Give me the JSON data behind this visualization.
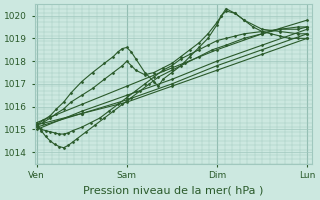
{
  "bg_color": "#cce8e0",
  "grid_color": "#a0c8be",
  "line_color": "#2a5a2a",
  "marker_color": "#2a5a2a",
  "ylim": [
    1013.7,
    1020.5
  ],
  "yticks": [
    1014,
    1015,
    1016,
    1017,
    1018,
    1019,
    1020
  ],
  "xlabel": "Pression niveau de la mer( hPa )",
  "xlabel_fontsize": 8,
  "tick_fontsize": 6.5,
  "xtick_labels": [
    "Ven",
    "Sam",
    "Dim",
    "Lun"
  ],
  "xtick_positions": [
    0,
    1,
    2,
    3
  ],
  "lines": [
    {
      "x": [
        0.0,
        0.5,
        1.0,
        1.5,
        2.0,
        2.5,
        3.0
      ],
      "y": [
        1015.2,
        1015.7,
        1016.2,
        1016.9,
        1017.6,
        1018.3,
        1019.0
      ],
      "marker": "D",
      "ms": 1.5,
      "lw": 0.8
    },
    {
      "x": [
        0.0,
        0.5,
        1.0,
        1.5,
        2.0,
        2.5,
        3.0
      ],
      "y": [
        1015.1,
        1015.7,
        1016.3,
        1017.0,
        1017.8,
        1018.5,
        1019.2
      ],
      "marker": "D",
      "ms": 1.5,
      "lw": 0.8
    },
    {
      "x": [
        0.0,
        0.5,
        1.0,
        1.5,
        2.0,
        2.5,
        3.0
      ],
      "y": [
        1015.0,
        1015.8,
        1016.5,
        1017.2,
        1018.0,
        1018.7,
        1019.4
      ],
      "marker": "D",
      "ms": 1.5,
      "lw": 0.8
    },
    {
      "x": [
        0.0,
        0.5,
        1.0,
        1.5,
        2.0,
        2.5,
        3.0
      ],
      "y": [
        1015.3,
        1016.1,
        1016.9,
        1017.7,
        1018.5,
        1019.2,
        1019.8
      ],
      "marker": "D",
      "ms": 1.5,
      "lw": 0.8
    },
    {
      "x": [
        0.0,
        0.07,
        0.15,
        0.22,
        0.3,
        0.38,
        0.5,
        0.62,
        0.75,
        0.85,
        0.95,
        1.0,
        1.05,
        1.1,
        1.2,
        1.3,
        1.4,
        1.5,
        1.6,
        1.7,
        1.8,
        1.9,
        2.0,
        2.05,
        2.1,
        2.2,
        2.3,
        2.4,
        2.5,
        2.6,
        2.7,
        2.8,
        2.9,
        3.0
      ],
      "y": [
        1015.2,
        1015.3,
        1015.5,
        1015.7,
        1015.9,
        1016.2,
        1016.5,
        1016.8,
        1017.2,
        1017.5,
        1017.8,
        1018.0,
        1017.8,
        1017.6,
        1017.4,
        1017.5,
        1017.7,
        1017.9,
        1018.2,
        1018.5,
        1018.8,
        1019.2,
        1019.7,
        1020.0,
        1020.2,
        1020.1,
        1019.8,
        1019.5,
        1019.3,
        1019.2,
        1019.1,
        1019.0,
        1019.0,
        1019.0
      ],
      "marker": "D",
      "ms": 1.5,
      "lw": 0.8
    },
    {
      "x": [
        0.0,
        0.07,
        0.15,
        0.22,
        0.3,
        0.38,
        0.5,
        0.62,
        0.75,
        0.85,
        0.9,
        0.95,
        1.0,
        1.05,
        1.1,
        1.2,
        1.3,
        1.35,
        1.4,
        1.5,
        1.6,
        1.7,
        1.8,
        1.9,
        2.0,
        2.05,
        2.1,
        2.2,
        2.3,
        2.5,
        2.7,
        2.9,
        3.0
      ],
      "y": [
        1015.2,
        1015.4,
        1015.6,
        1015.9,
        1016.2,
        1016.6,
        1017.1,
        1017.5,
        1017.9,
        1018.2,
        1018.4,
        1018.55,
        1018.6,
        1018.4,
        1018.1,
        1017.5,
        1017.1,
        1016.9,
        1017.2,
        1017.5,
        1017.8,
        1018.2,
        1018.6,
        1019.0,
        1019.6,
        1020.0,
        1020.3,
        1020.1,
        1019.8,
        1019.4,
        1019.3,
        1019.2,
        1019.2
      ],
      "marker": "D",
      "ms": 1.5,
      "lw": 0.8
    },
    {
      "x": [
        0.0,
        0.05,
        0.1,
        0.15,
        0.2,
        0.25,
        0.3,
        0.35,
        0.4,
        0.5,
        0.6,
        0.7,
        0.8,
        0.9,
        1.0,
        1.1,
        1.2,
        1.3,
        1.4,
        1.5,
        1.6,
        1.7,
        1.8,
        1.9,
        2.0,
        2.1,
        2.2,
        2.3,
        2.5,
        2.7,
        2.9,
        3.0
      ],
      "y": [
        1015.2,
        1015.0,
        1014.95,
        1014.9,
        1014.85,
        1014.8,
        1014.8,
        1014.85,
        1014.95,
        1015.1,
        1015.3,
        1015.5,
        1015.8,
        1016.1,
        1016.4,
        1016.7,
        1017.0,
        1017.3,
        1017.6,
        1017.8,
        1018.1,
        1018.3,
        1018.5,
        1018.7,
        1018.9,
        1019.0,
        1019.1,
        1019.2,
        1019.3,
        1019.4,
        1019.4,
        1019.5
      ],
      "marker": "D",
      "ms": 1.5,
      "lw": 0.8
    },
    {
      "x": [
        0.0,
        0.05,
        0.1,
        0.15,
        0.2,
        0.25,
        0.3,
        0.35,
        0.4,
        0.45,
        0.55,
        0.65,
        0.75,
        0.85,
        0.95,
        1.05,
        1.15,
        1.25,
        1.35,
        1.5,
        1.65,
        1.8,
        1.95,
        2.1,
        2.3,
        2.5,
        2.7,
        2.9,
        3.0
      ],
      "y": [
        1015.2,
        1014.95,
        1014.7,
        1014.5,
        1014.35,
        1014.25,
        1014.2,
        1014.3,
        1014.45,
        1014.6,
        1014.9,
        1015.2,
        1015.5,
        1015.8,
        1016.1,
        1016.4,
        1016.7,
        1017.0,
        1017.3,
        1017.6,
        1017.9,
        1018.2,
        1018.5,
        1018.7,
        1019.0,
        1019.2,
        1019.4,
        1019.5,
        1019.5
      ],
      "marker": "D",
      "ms": 1.5,
      "lw": 0.8
    }
  ]
}
